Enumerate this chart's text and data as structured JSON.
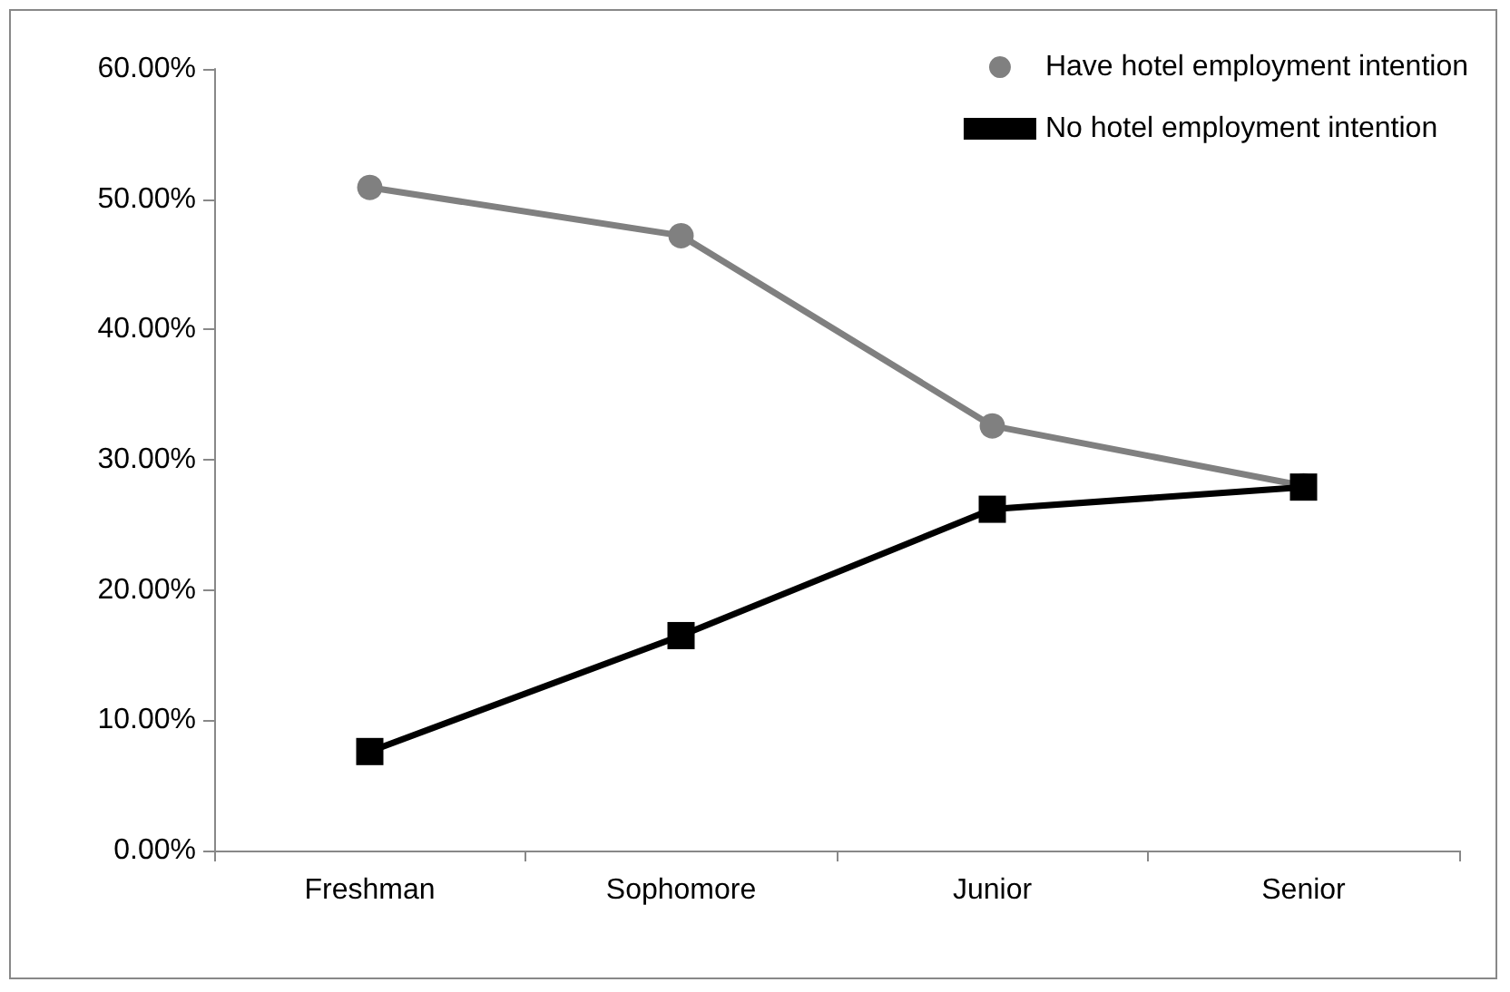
{
  "chart_data": {
    "type": "line",
    "categories": [
      "Freshman",
      "Sophomore",
      "Junior",
      "Senior"
    ],
    "series": [
      {
        "name": "Have hotel employment intention",
        "color": "#808080",
        "marker": "circle",
        "values": [
          50.9,
          47.2,
          32.6,
          28.0
        ]
      },
      {
        "name": "No hotel employment intention",
        "color": "#000000",
        "marker": "square",
        "values": [
          7.6,
          16.5,
          26.2,
          27.9
        ]
      }
    ],
    "ylim": [
      0,
      60
    ],
    "yticks": [
      {
        "value": 0,
        "label": "0.00%"
      },
      {
        "value": 10,
        "label": "10.00%"
      },
      {
        "value": 20,
        "label": "20.00%"
      },
      {
        "value": 30,
        "label": "30.00%"
      },
      {
        "value": 40,
        "label": "40.00%"
      },
      {
        "value": 50,
        "label": "50.00%"
      },
      {
        "value": 60,
        "label": "60.00%"
      }
    ],
    "grid": false,
    "legend": "top right"
  }
}
